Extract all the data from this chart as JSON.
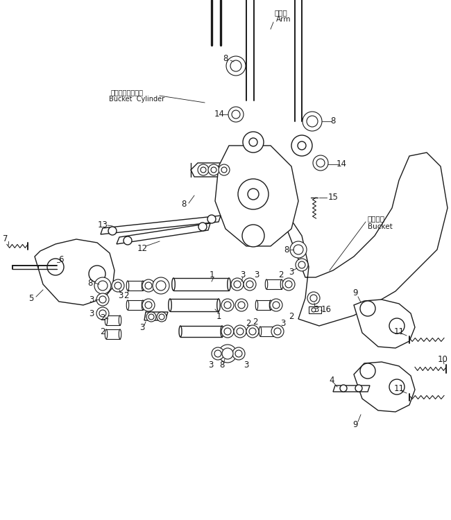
{
  "bg_color": "#ffffff",
  "lc": "#1a1a1a",
  "fig_w": 6.5,
  "fig_h": 7.5,
  "dpi": 100,
  "arm_jp": "アーム",
  "arm_en": "Arm",
  "bc_jp": "バケットシリンダ",
  "bc_en": "Bucket  Cylinder",
  "bk_jp": "バケット",
  "bk_en": "Bucket"
}
